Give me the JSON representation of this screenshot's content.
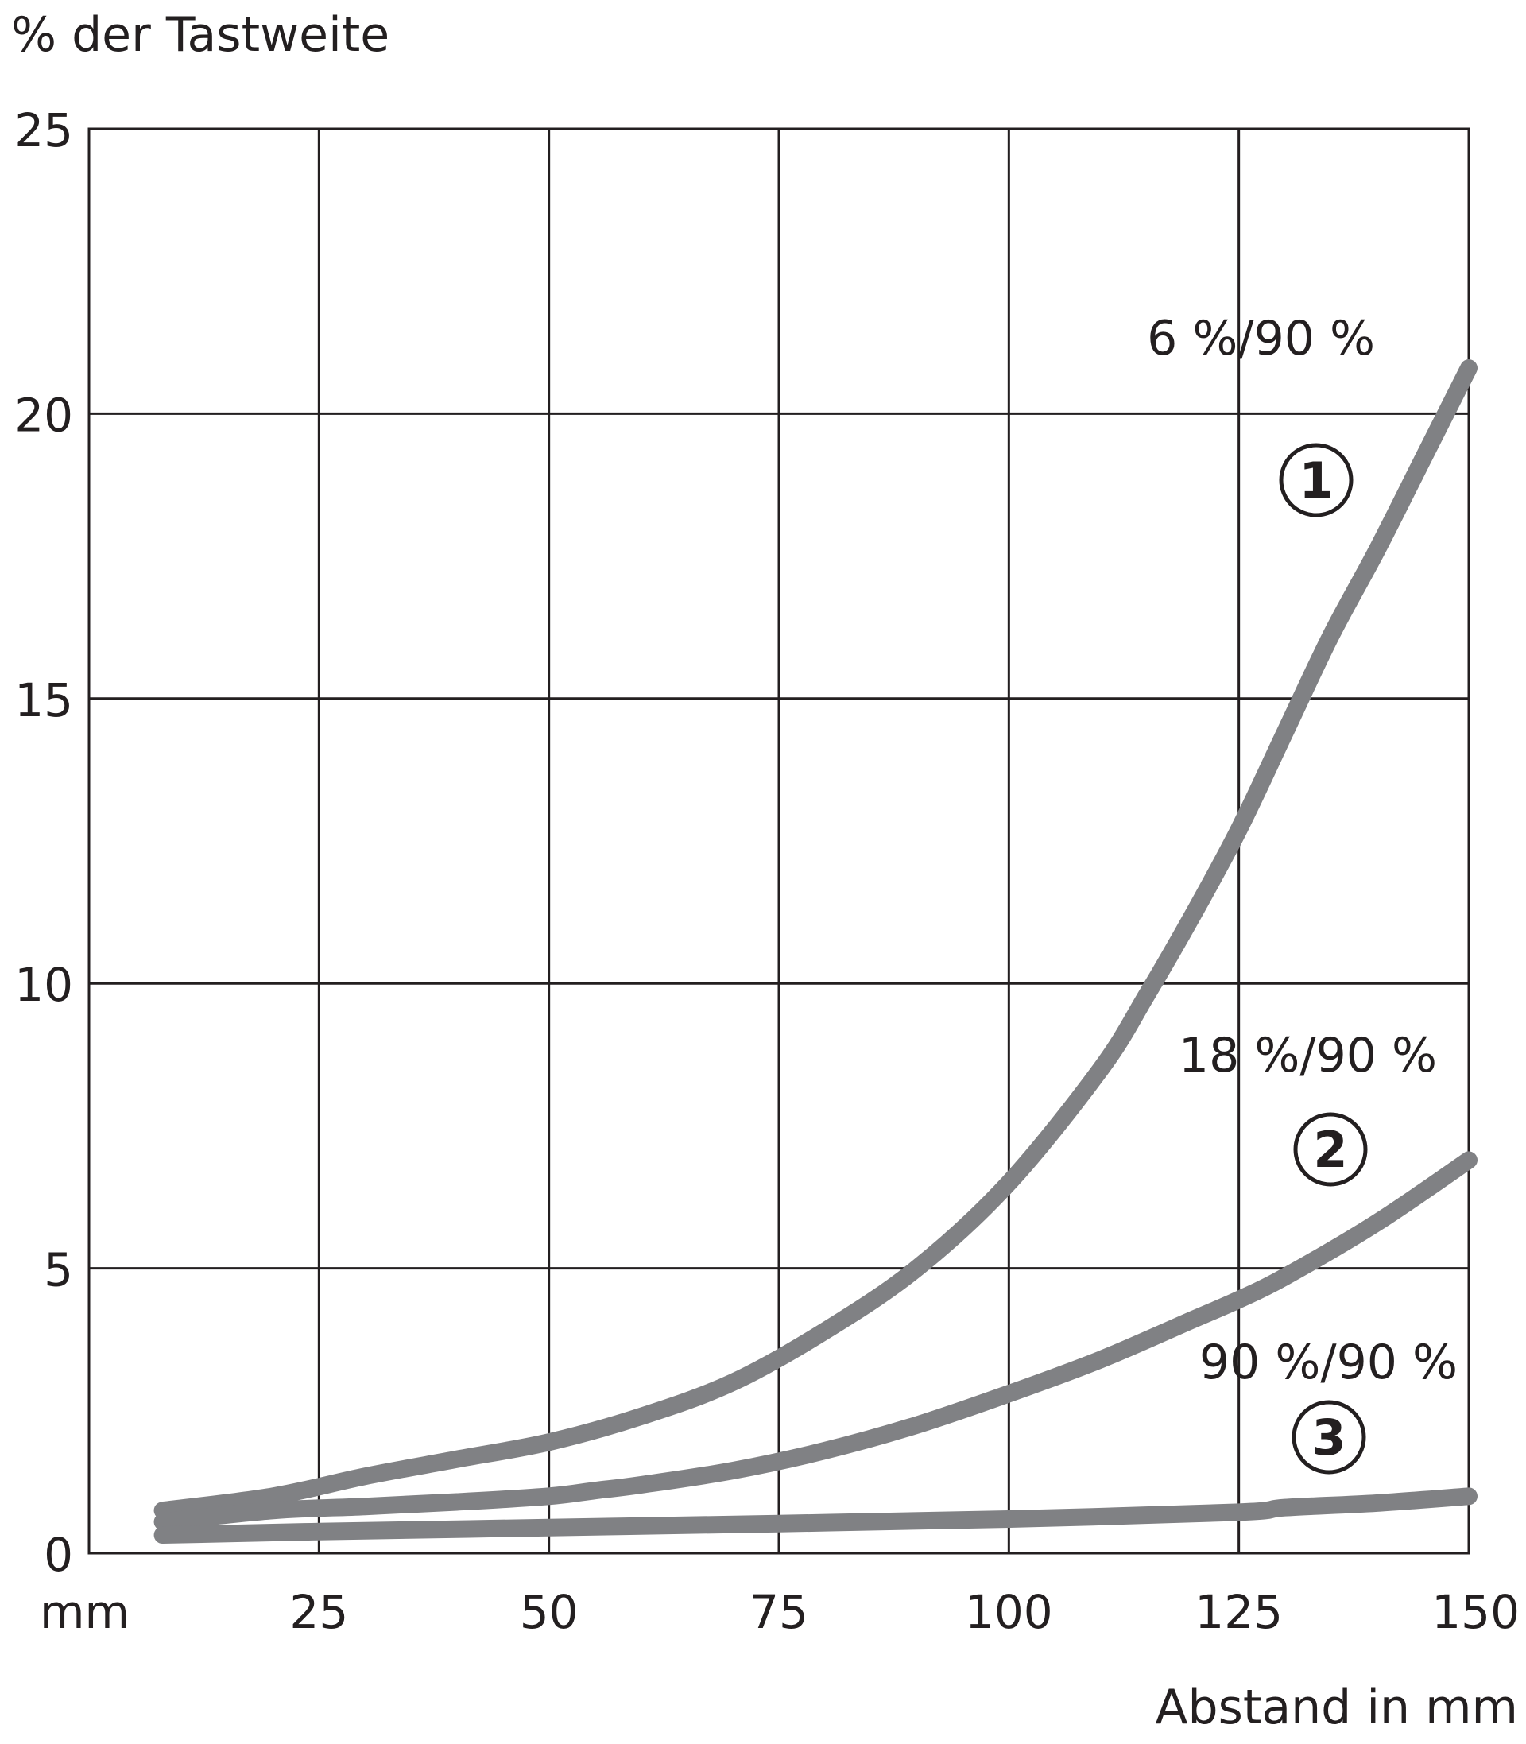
{
  "chart_data": {
    "type": "line",
    "ylabel": "% der Tastweite",
    "xlabel": "Abstand in mm",
    "x_unit_label": "mm",
    "xlim": [
      0,
      150
    ],
    "ylim": [
      0,
      25
    ],
    "x_ticks": [
      "25",
      "50",
      "75",
      "100",
      "125",
      "150"
    ],
    "y_ticks": [
      "0",
      "5",
      "10",
      "15",
      "20",
      "25"
    ],
    "x_tick_values": [
      25,
      50,
      75,
      100,
      125,
      150
    ],
    "y_tick_values": [
      0,
      5,
      10,
      15,
      20,
      25
    ],
    "grid": true,
    "colors": {
      "series": "#808184",
      "grid": "#231f20",
      "text": "#231f20"
    },
    "series": [
      {
        "name": "6 %/90 %",
        "marker": "①",
        "x": [
          8,
          20,
          30,
          40,
          50,
          60,
          70,
          80,
          90,
          100,
          110,
          115,
          120,
          125,
          130,
          135,
          140,
          145,
          150
        ],
        "y": [
          0.75,
          1.0,
          1.35,
          1.65,
          1.95,
          2.4,
          3.0,
          3.9,
          5.0,
          6.5,
          8.5,
          9.8,
          11.2,
          12.7,
          14.4,
          16.1,
          17.6,
          19.2,
          20.8
        ]
      },
      {
        "name": "18 %/90 %",
        "marker": "②",
        "x": [
          8,
          20,
          30,
          40,
          50,
          55,
          60,
          70,
          80,
          90,
          100,
          110,
          120,
          125,
          130,
          140,
          150
        ],
        "y": [
          0.55,
          0.75,
          0.82,
          0.9,
          1.0,
          1.1,
          1.2,
          1.45,
          1.8,
          2.25,
          2.8,
          3.4,
          4.1,
          4.45,
          4.85,
          5.8,
          6.9
        ]
      },
      {
        "name": "90 %/90 %",
        "marker": "③",
        "x": [
          8,
          25,
          50,
          75,
          100,
          125,
          130,
          140,
          150
        ],
        "y": [
          0.32,
          0.38,
          0.45,
          0.52,
          0.6,
          0.72,
          0.8,
          0.88,
          1.0
        ]
      }
    ]
  }
}
